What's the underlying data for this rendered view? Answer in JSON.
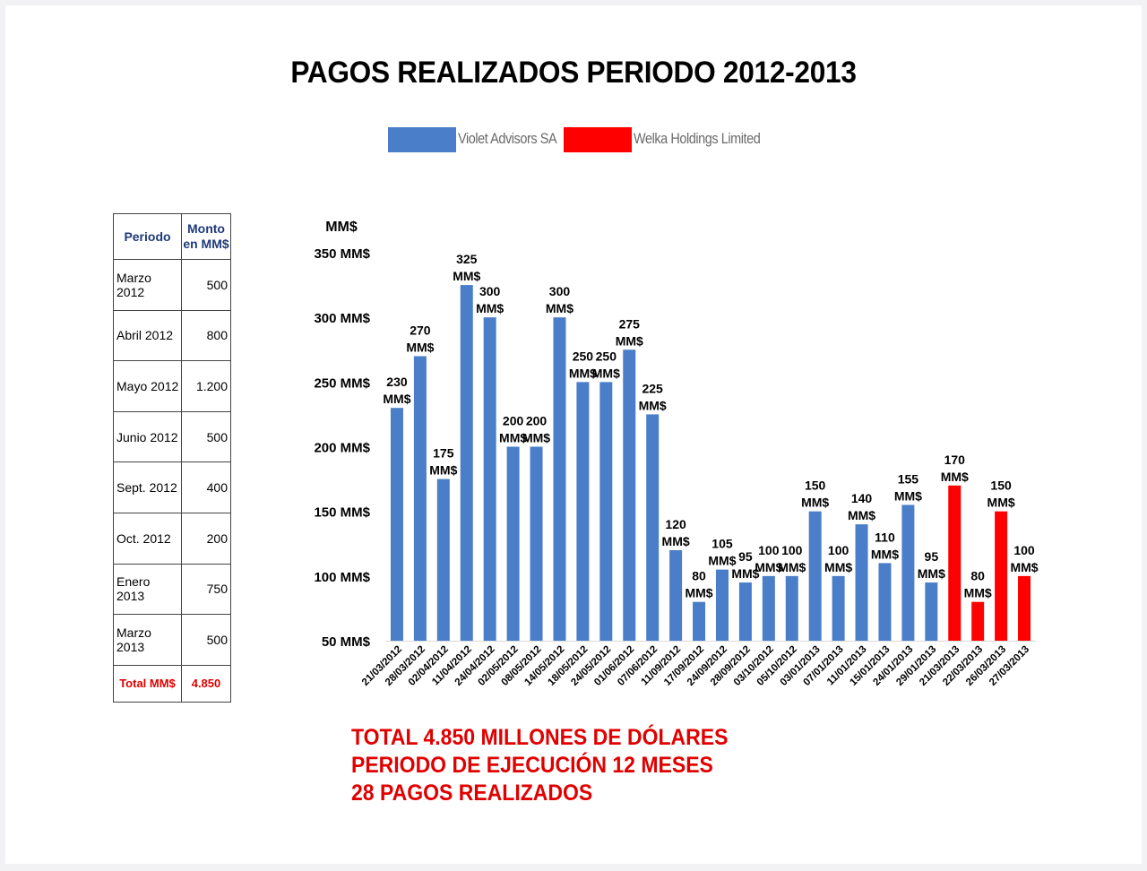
{
  "title": "PAGOS REALIZADOS PERIODO 2012-2013",
  "legend": [
    {
      "name": "Violet Advisors SA",
      "color": "#4a7ec8"
    },
    {
      "name": "Welka Holdings Limited",
      "color": "#ff0000"
    }
  ],
  "table": {
    "headers": [
      "Periodo",
      "Monto en MM$"
    ],
    "rows": [
      {
        "periodo": "Marzo 2012",
        "monto": "500"
      },
      {
        "periodo": "Abril 2012",
        "monto": "800"
      },
      {
        "periodo": "Mayo 2012",
        "monto": "1.200"
      },
      {
        "periodo": "Junio 2012",
        "monto": "500"
      },
      {
        "periodo": "Sept. 2012",
        "monto": "400"
      },
      {
        "periodo": "Oct. 2012",
        "monto": "200"
      },
      {
        "periodo": "Enero 2013",
        "monto": "750"
      },
      {
        "periodo": "Marzo 2013",
        "monto": "500"
      }
    ],
    "total": {
      "periodo": "Total MM$",
      "monto": "4.850"
    }
  },
  "chart_data": {
    "type": "bar",
    "title": "PAGOS REALIZADOS PERIODO 2012-2013",
    "ylabel": "MM$",
    "ylim": [
      50,
      350
    ],
    "yticks": [
      50,
      100,
      150,
      200,
      250,
      300,
      350
    ],
    "ytick_suffix": " MM$",
    "value_suffix": "MM$",
    "grid": false,
    "legend_position": "top",
    "categories": [
      "21/03/2012",
      "28/03/2012",
      "02/04/2012",
      "11/04/2012",
      "24/04/2012",
      "02/05/2012",
      "08/05/2012",
      "14/05/2012",
      "18/05/2012",
      "24/05/2012",
      "01/06/2012",
      "07/06/2012",
      "11/09/2012",
      "17/09/2012",
      "24/09/2012",
      "28/09/2012",
      "03/10/2012",
      "05/10/2012",
      "03/01/2013",
      "07/01/2013",
      "11/01/2013",
      "15/01/2013",
      "24/01/2013",
      "29/01/2013",
      "21/03/2013",
      "22/03/2013",
      "26/03/2013",
      "27/03/2013"
    ],
    "values": [
      230,
      270,
      175,
      325,
      300,
      200,
      200,
      300,
      250,
      250,
      275,
      225,
      120,
      80,
      105,
      95,
      100,
      100,
      150,
      100,
      140,
      110,
      155,
      95,
      170,
      80,
      150,
      100
    ],
    "series_of_bar": [
      "Violet Advisors SA",
      "Violet Advisors SA",
      "Violet Advisors SA",
      "Violet Advisors SA",
      "Violet Advisors SA",
      "Violet Advisors SA",
      "Violet Advisors SA",
      "Violet Advisors SA",
      "Violet Advisors SA",
      "Violet Advisors SA",
      "Violet Advisors SA",
      "Violet Advisors SA",
      "Violet Advisors SA",
      "Violet Advisors SA",
      "Violet Advisors SA",
      "Violet Advisors SA",
      "Violet Advisors SA",
      "Violet Advisors SA",
      "Violet Advisors SA",
      "Violet Advisors SA",
      "Violet Advisors SA",
      "Violet Advisors SA",
      "Violet Advisors SA",
      "Violet Advisors SA",
      "Welka Holdings Limited",
      "Welka Holdings Limited",
      "Welka Holdings Limited",
      "Welka Holdings Limited"
    ]
  },
  "summary": [
    "TOTAL 4.850 MILLONES DE DÓLARES",
    "PERIODO DE EJECUCIÓN 12 MESES",
    "28 PAGOS REALIZADOS"
  ]
}
